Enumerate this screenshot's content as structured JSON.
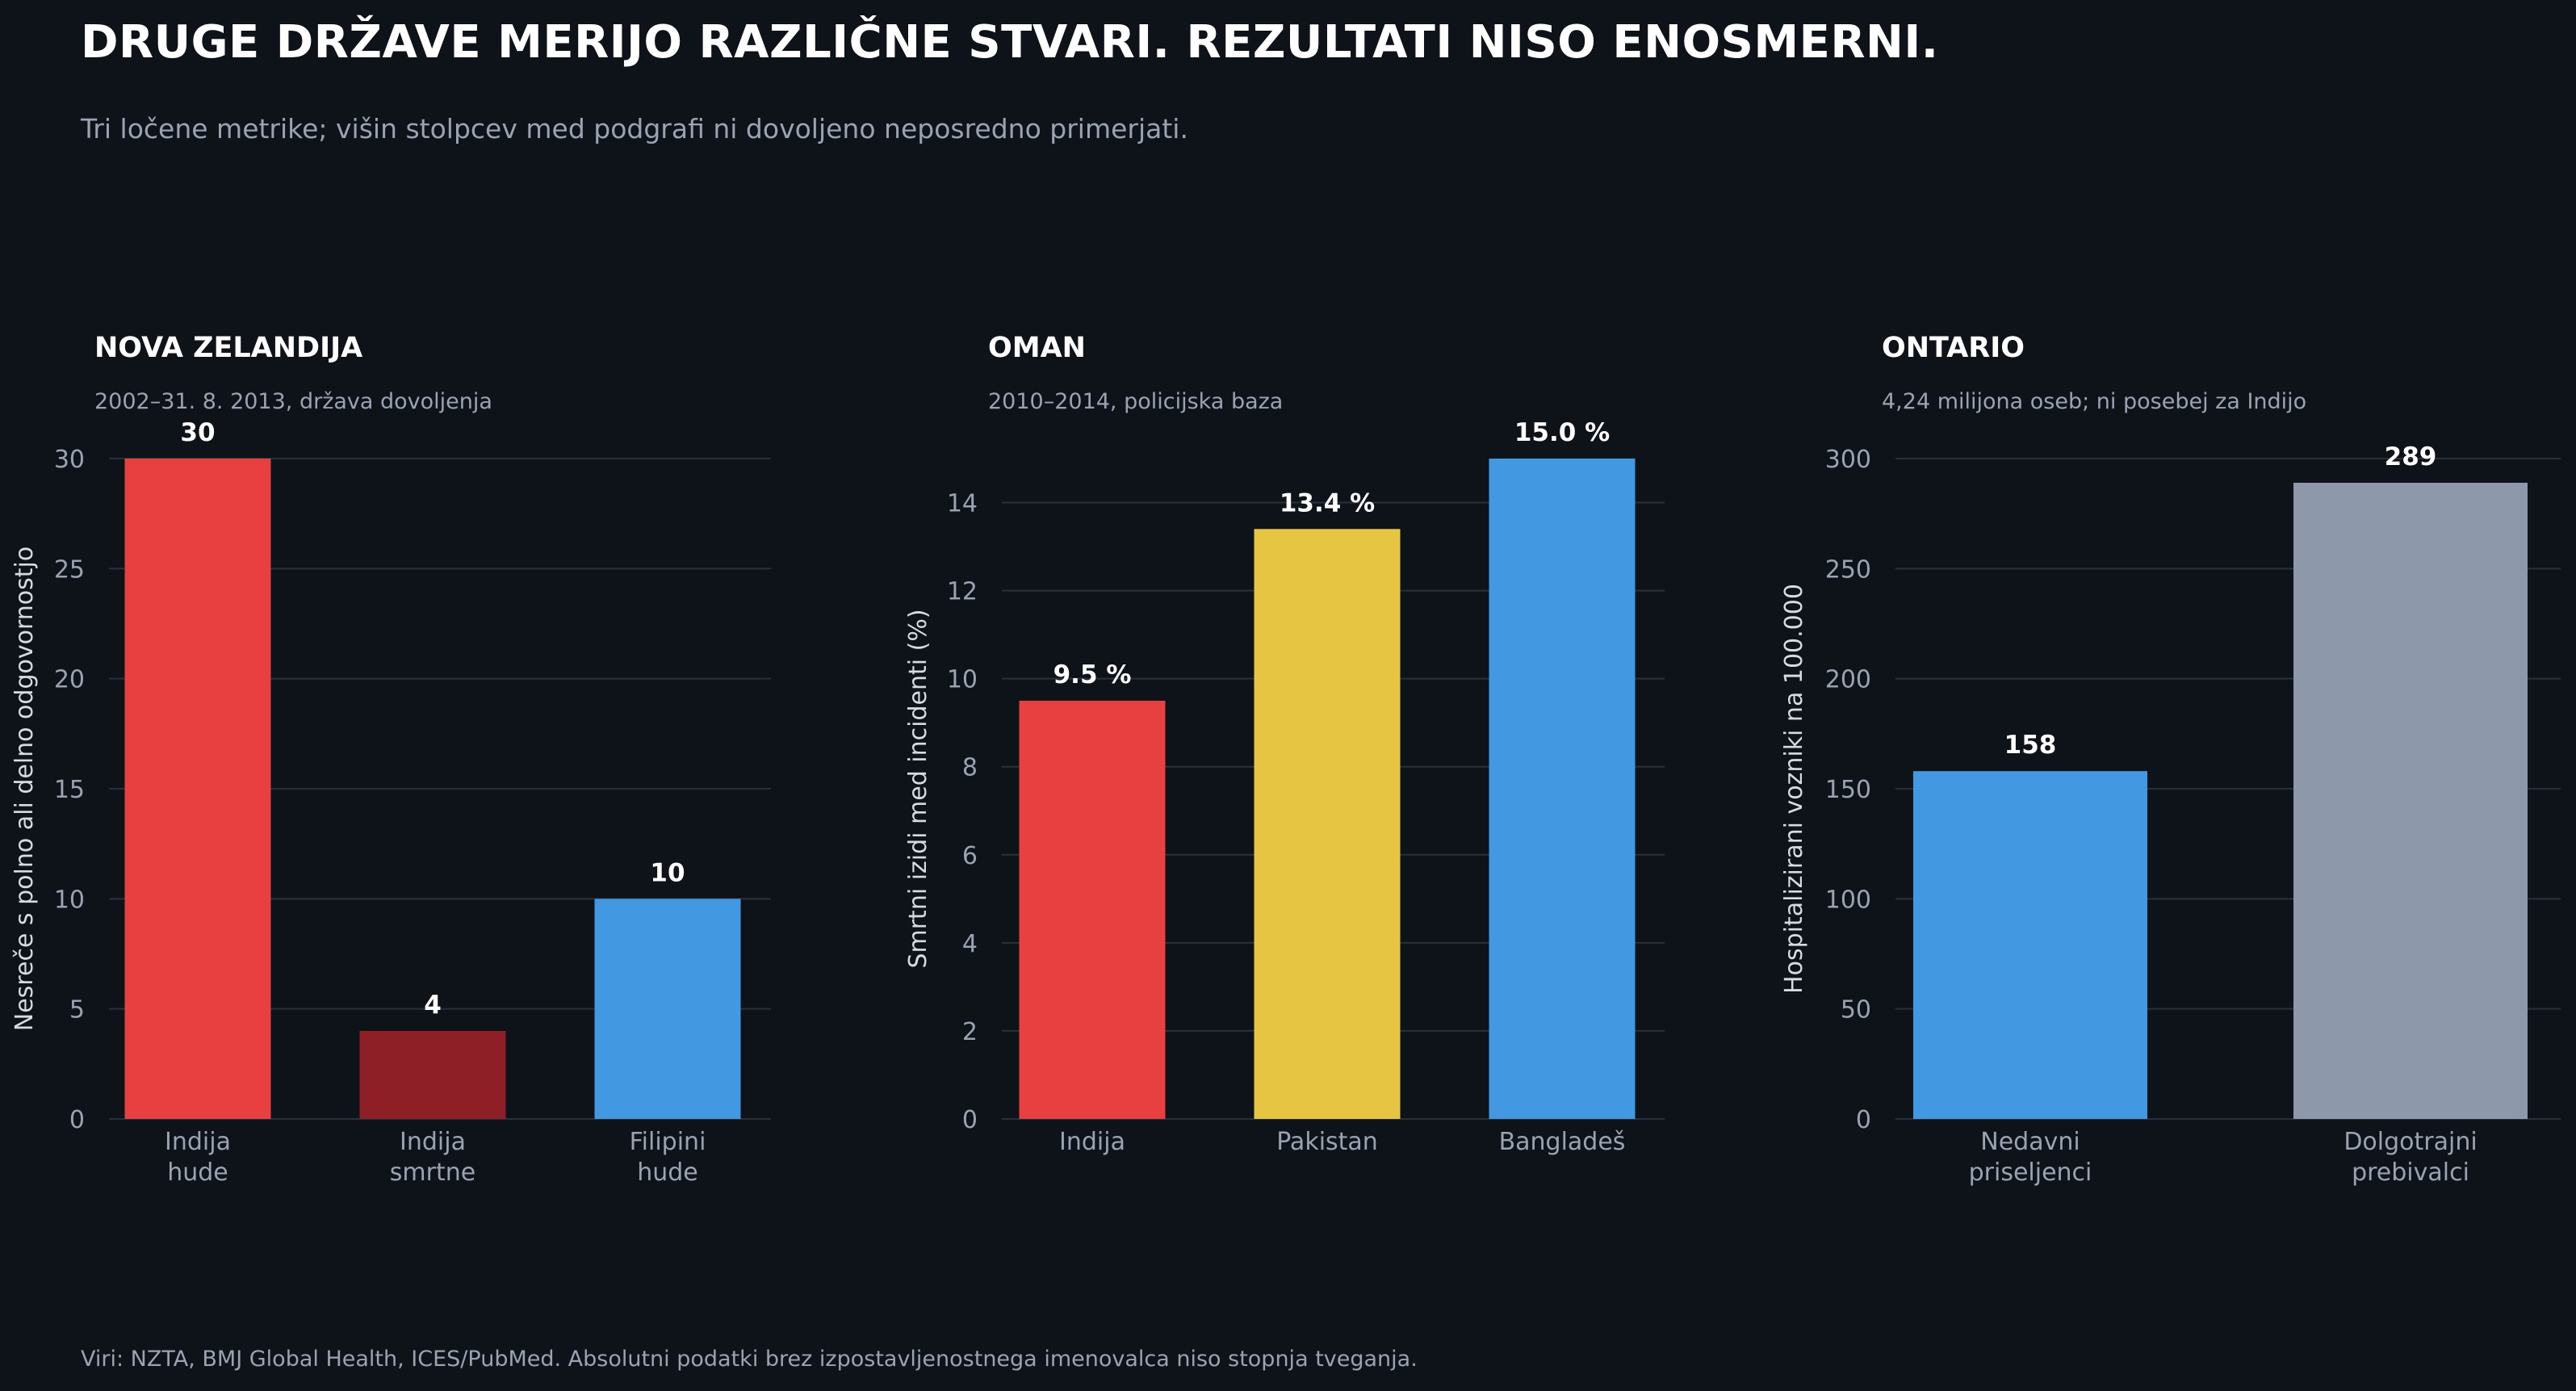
{
  "title": "DRUGE DRŽAVE MERIJO RAZLIČNE STVARI. REZULTATI NISO ENOSMERNI.",
  "subtitle": "Tri ločene metrike; višin stolpcev med podgrafi ni dovoljeno neposredno primerjati.",
  "footer": "Viri: NZTA, BMJ Global Health, ICES/PubMed. Absolutni podatki brez izpostavljenostnega imenovalca niso stopnja tveganja.",
  "colors": {
    "background": "#0e1219",
    "grid": "#2a303b",
    "red": "#e84040",
    "dark_red": "#8e1f26",
    "blue": "#4299e1",
    "yellow": "#e6c542",
    "gray": "#8d98ab"
  },
  "chart_data": [
    {
      "type": "bar",
      "title": "NOVA ZELANDIJA",
      "subtitle": "2002–31. 8. 2013, država dovoljenja",
      "ylabel": "Nesreče s polno ali delno odgovornostjo",
      "ylim": [
        0,
        30
      ],
      "yticks": [
        0,
        5,
        10,
        15,
        20,
        25,
        30
      ],
      "grid": true,
      "categories": [
        [
          "Indija",
          "hude"
        ],
        [
          "Indija",
          "smrtne"
        ],
        [
          "Filipini",
          "hude"
        ]
      ],
      "values": [
        30,
        4,
        10
      ],
      "labels": [
        "30",
        "4",
        "10"
      ],
      "colors": [
        "#e84040",
        "#8e1f26",
        "#4299e1"
      ]
    },
    {
      "type": "bar",
      "title": "OMAN",
      "subtitle": "2010–2014, policijska baza",
      "ylabel": "Smrtni izidi med incidenti (%)",
      "ylim": [
        0,
        15
      ],
      "yticks": [
        0,
        2,
        4,
        6,
        8,
        10,
        12,
        14
      ],
      "grid": true,
      "categories": [
        [
          "Indija"
        ],
        [
          "Pakistan"
        ],
        [
          "Bangladeš"
        ]
      ],
      "values": [
        9.5,
        13.4,
        15.0
      ],
      "labels": [
        "9.5 %",
        "13.4 %",
        "15.0 %"
      ],
      "colors": [
        "#e84040",
        "#e6c542",
        "#4299e1"
      ]
    },
    {
      "type": "bar",
      "title": "ONTARIO",
      "subtitle": "4,24 milijona oseb; ni posebej za Indijo",
      "ylabel": "Hospitalizirani vozniki na 100.000",
      "ylim": [
        0,
        300
      ],
      "yticks": [
        0,
        50,
        100,
        150,
        200,
        250,
        300
      ],
      "grid": true,
      "categories": [
        [
          "Nedavni",
          "priseljenci"
        ],
        [
          "Dolgotrajni",
          "prebivalci"
        ]
      ],
      "values": [
        158,
        289
      ],
      "labels": [
        "158",
        "289"
      ],
      "colors": [
        "#4299e1",
        "#8d98ab"
      ]
    }
  ]
}
